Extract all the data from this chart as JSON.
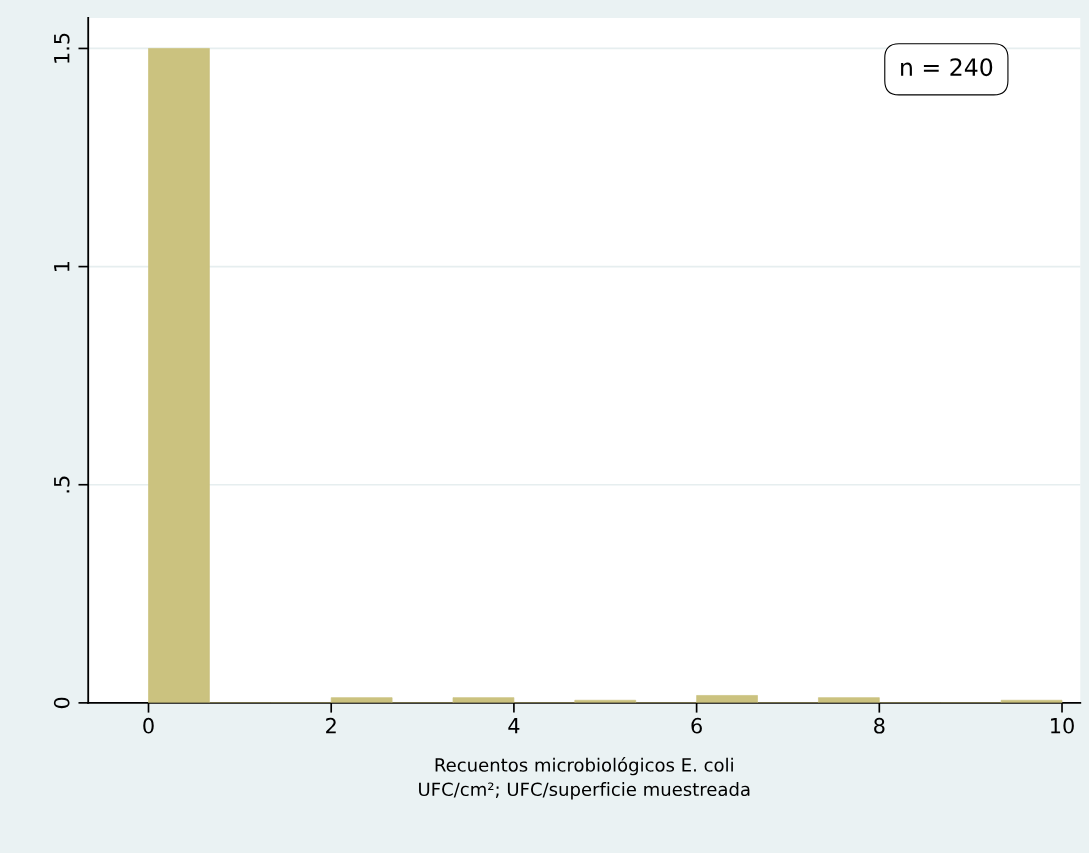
{
  "chart_data": {
    "type": "histogram",
    "bins": [
      0,
      0.6667,
      1.3333,
      2,
      2.6667,
      3.3333,
      4,
      4.6667,
      5.3333,
      6,
      6.6667,
      7.3333,
      8,
      8.6667,
      9.3333,
      10
    ],
    "values": [
      1.5,
      0,
      0,
      0.012,
      0,
      0.012,
      0,
      0.006,
      0,
      0.017,
      0,
      0.012,
      0,
      0,
      0.006
    ],
    "color": "#cbc27f",
    "xlabel": "Recuentos microbiológicos E. coli\nUFC/cm²; UFC/superficie muestreada",
    "xlim": [
      -0.66,
      10.2
    ],
    "xticks": [
      0,
      2,
      4,
      6,
      8,
      10
    ],
    "ylim": [
      0,
      1.57
    ],
    "yticks": [
      {
        "value": 0,
        "label": "0"
      },
      {
        "value": 0.5,
        "label": ".5"
      },
      {
        "value": 1,
        "label": "1"
      },
      {
        "value": 1.5,
        "label": "1.5"
      }
    ],
    "grid": "y",
    "annotations": [
      "n = 240"
    ]
  }
}
